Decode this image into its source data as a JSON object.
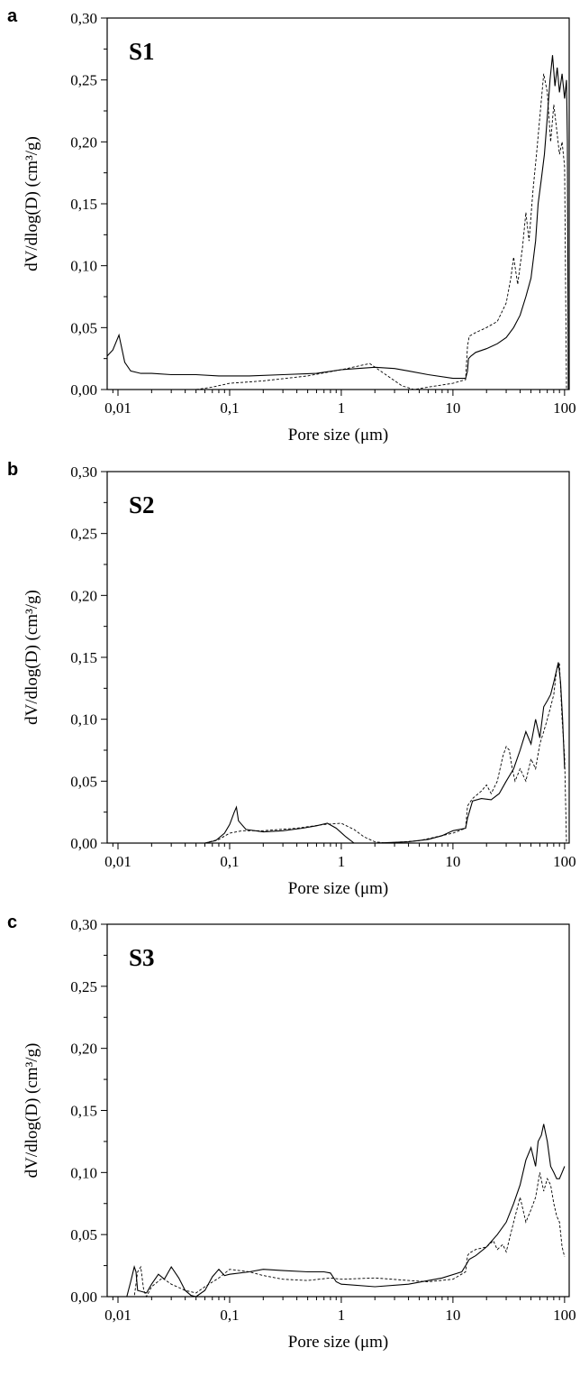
{
  "chart_data": [
    {
      "type": "line",
      "panel_letter": "a",
      "title": "S1",
      "xlabel": "Pore size (μm)",
      "ylabel": "dV/dlog(D) (cm³/g)",
      "x_scale": "log",
      "xlim": [
        0.008,
        110
      ],
      "ylim": [
        0,
        0.3
      ],
      "x_ticks": [
        {
          "value": 0.01,
          "label": "0,01"
        },
        {
          "value": 0.1,
          "label": "0,1"
        },
        {
          "value": 1,
          "label": "1"
        },
        {
          "value": 10,
          "label": "10"
        },
        {
          "value": 100,
          "label": "100"
        }
      ],
      "y_ticks": [
        {
          "value": 0.0,
          "label": "0,00"
        },
        {
          "value": 0.05,
          "label": "0,05"
        },
        {
          "value": 0.1,
          "label": "0,10"
        },
        {
          "value": 0.15,
          "label": "0,15"
        },
        {
          "value": 0.2,
          "label": "0,20"
        },
        {
          "value": 0.25,
          "label": "0,25"
        },
        {
          "value": 0.3,
          "label": "0,30"
        }
      ],
      "grid": false,
      "series": [
        {
          "style": "solid",
          "x": [
            0.008,
            0.009,
            0.0102,
            0.0115,
            0.013,
            0.016,
            0.02,
            0.03,
            0.05,
            0.08,
            0.15,
            0.3,
            0.6,
            1,
            2,
            3,
            4,
            6,
            10,
            13,
            13.5,
            13.8,
            14.5,
            16,
            20,
            25,
            30,
            35,
            40,
            45,
            50,
            55,
            58,
            62,
            66,
            70,
            74,
            78,
            82,
            86,
            90,
            95,
            100,
            104,
            106,
            107,
            108
          ],
          "y": [
            0.027,
            0.032,
            0.044,
            0.022,
            0.015,
            0.013,
            0.013,
            0.012,
            0.012,
            0.011,
            0.011,
            0.012,
            0.013,
            0.016,
            0.018,
            0.017,
            0.015,
            0.012,
            0.009,
            0.009,
            0.015,
            0.025,
            0.027,
            0.03,
            0.033,
            0.037,
            0.042,
            0.05,
            0.06,
            0.075,
            0.09,
            0.12,
            0.15,
            0.17,
            0.19,
            0.22,
            0.25,
            0.27,
            0.245,
            0.26,
            0.24,
            0.255,
            0.235,
            0.25,
            0.2,
            0.1,
            0.0
          ]
        },
        {
          "style": "dashed",
          "x": [
            0.05,
            0.07,
            0.1,
            0.2,
            0.5,
            1,
            1.8,
            2.5,
            3.5,
            4.5,
            6,
            10,
            13,
            13.5,
            14,
            16,
            20,
            25,
            30,
            33,
            35,
            38,
            42,
            45,
            48,
            52,
            56,
            60,
            65,
            70,
            75,
            80,
            85,
            90,
            95,
            100,
            104
          ],
          "y": [
            0.0,
            0.002,
            0.005,
            0.007,
            0.011,
            0.016,
            0.021,
            0.012,
            0.003,
            0.0,
            0.002,
            0.005,
            0.008,
            0.035,
            0.043,
            0.046,
            0.05,
            0.055,
            0.07,
            0.09,
            0.107,
            0.085,
            0.115,
            0.143,
            0.12,
            0.16,
            0.19,
            0.22,
            0.255,
            0.24,
            0.2,
            0.23,
            0.21,
            0.19,
            0.2,
            0.18,
            0.0
          ]
        }
      ]
    },
    {
      "type": "line",
      "panel_letter": "b",
      "title": "S2",
      "xlabel": "Pore size (μm)",
      "ylabel": "dV/dlog(D) (cm³/g)",
      "x_scale": "log",
      "xlim": [
        0.008,
        110
      ],
      "ylim": [
        0,
        0.3
      ],
      "x_ticks": [
        {
          "value": 0.01,
          "label": "0,01"
        },
        {
          "value": 0.1,
          "label": "0,1"
        },
        {
          "value": 1,
          "label": "1"
        },
        {
          "value": 10,
          "label": "10"
        },
        {
          "value": 100,
          "label": "100"
        }
      ],
      "y_ticks": [
        {
          "value": 0.0,
          "label": "0,00"
        },
        {
          "value": 0.05,
          "label": "0,05"
        },
        {
          "value": 0.1,
          "label": "0,10"
        },
        {
          "value": 0.15,
          "label": "0,15"
        },
        {
          "value": 0.2,
          "label": "0,20"
        },
        {
          "value": 0.25,
          "label": "0,25"
        },
        {
          "value": 0.3,
          "label": "0,30"
        }
      ],
      "grid": false,
      "series": [
        {
          "style": "solid",
          "x": [
            0.06,
            0.075,
            0.09,
            0.1,
            0.11,
            0.115,
            0.12,
            0.14,
            0.2,
            0.3,
            0.45,
            0.6,
            0.75,
            0.9,
            1.1,
            1.3,
            2,
            4,
            6,
            8,
            10,
            13,
            13.5,
            15,
            18,
            22,
            26,
            30,
            35,
            40,
            45,
            50,
            55,
            60,
            65,
            70,
            75,
            80,
            85,
            88,
            92,
            96,
            100
          ],
          "y": [
            0.0,
            0.002,
            0.008,
            0.015,
            0.025,
            0.029,
            0.018,
            0.011,
            0.009,
            0.01,
            0.012,
            0.014,
            0.016,
            0.012,
            0.005,
            0.0,
            0.0,
            0.001,
            0.003,
            0.006,
            0.01,
            0.012,
            0.02,
            0.034,
            0.036,
            0.035,
            0.04,
            0.05,
            0.06,
            0.075,
            0.09,
            0.08,
            0.1,
            0.085,
            0.11,
            0.115,
            0.12,
            0.13,
            0.14,
            0.146,
            0.13,
            0.1,
            0.06
          ]
        },
        {
          "style": "dashed",
          "x": [
            0.06,
            0.08,
            0.1,
            0.13,
            0.2,
            0.4,
            0.7,
            1,
            1.3,
            1.6,
            2,
            2.5,
            5,
            10,
            13,
            13.5,
            15,
            18,
            20,
            22,
            25,
            28,
            30,
            32,
            34,
            36,
            40,
            45,
            50,
            55,
            60,
            65,
            70,
            75,
            80,
            85,
            90,
            95,
            100,
            104
          ],
          "y": [
            0.0,
            0.003,
            0.008,
            0.01,
            0.01,
            0.012,
            0.015,
            0.016,
            0.011,
            0.005,
            0.001,
            0.0,
            0.002,
            0.008,
            0.012,
            0.03,
            0.036,
            0.042,
            0.047,
            0.04,
            0.05,
            0.07,
            0.078,
            0.075,
            0.06,
            0.05,
            0.06,
            0.05,
            0.068,
            0.06,
            0.08,
            0.09,
            0.1,
            0.11,
            0.12,
            0.14,
            0.145,
            0.1,
            0.07,
            0.0
          ]
        }
      ]
    },
    {
      "type": "line",
      "panel_letter": "c",
      "title": "S3",
      "xlabel": "Pore size (μm)",
      "ylabel": "dV/dlog(D) (cm³/g)",
      "x_scale": "log",
      "xlim": [
        0.008,
        110
      ],
      "ylim": [
        0,
        0.3
      ],
      "x_ticks": [
        {
          "value": 0.01,
          "label": "0,01"
        },
        {
          "value": 0.1,
          "label": "0,1"
        },
        {
          "value": 1,
          "label": "1"
        },
        {
          "value": 10,
          "label": "10"
        },
        {
          "value": 100,
          "label": "100"
        }
      ],
      "y_ticks": [
        {
          "value": 0.0,
          "label": "0,00"
        },
        {
          "value": 0.05,
          "label": "0,05"
        },
        {
          "value": 0.1,
          "label": "0,10"
        },
        {
          "value": 0.15,
          "label": "0,15"
        },
        {
          "value": 0.2,
          "label": "0,20"
        },
        {
          "value": 0.25,
          "label": "0,25"
        },
        {
          "value": 0.3,
          "label": "0,30"
        }
      ],
      "grid": false,
      "series": [
        {
          "style": "solid",
          "x": [
            0.012,
            0.013,
            0.014,
            0.0145,
            0.015,
            0.018,
            0.02,
            0.023,
            0.026,
            0.03,
            0.035,
            0.04,
            0.045,
            0.05,
            0.06,
            0.07,
            0.08,
            0.09,
            0.1,
            0.15,
            0.2,
            0.3,
            0.5,
            0.7,
            0.8,
            0.9,
            1,
            2,
            4,
            8,
            12,
            13,
            14,
            16,
            20,
            25,
            30,
            35,
            40,
            45,
            50,
            55,
            58,
            62,
            65,
            70,
            75,
            80,
            85,
            90,
            95,
            100
          ],
          "y": [
            0.0,
            0.012,
            0.024,
            0.02,
            0.005,
            0.003,
            0.01,
            0.018,
            0.014,
            0.024,
            0.015,
            0.005,
            0.001,
            0.0,
            0.005,
            0.016,
            0.022,
            0.017,
            0.018,
            0.02,
            0.022,
            0.021,
            0.02,
            0.02,
            0.019,
            0.012,
            0.01,
            0.008,
            0.01,
            0.015,
            0.02,
            0.025,
            0.03,
            0.033,
            0.04,
            0.05,
            0.06,
            0.075,
            0.09,
            0.11,
            0.12,
            0.105,
            0.125,
            0.13,
            0.139,
            0.125,
            0.105,
            0.1,
            0.095,
            0.095,
            0.1,
            0.105
          ]
        },
        {
          "style": "dashed",
          "x": [
            0.012,
            0.014,
            0.015,
            0.016,
            0.017,
            0.018,
            0.02,
            0.025,
            0.03,
            0.04,
            0.05,
            0.06,
            0.08,
            0.1,
            0.15,
            0.2,
            0.3,
            0.5,
            0.8,
            1,
            2,
            4,
            6,
            10,
            13,
            13.5,
            14,
            16,
            20,
            23,
            25,
            28,
            30,
            35,
            40,
            45,
            50,
            55,
            60,
            65,
            70,
            75,
            80,
            85,
            90,
            95,
            100
          ],
          "y": [
            0.0,
            0.0,
            0.02,
            0.024,
            0.005,
            0.0,
            0.008,
            0.015,
            0.01,
            0.005,
            0.003,
            0.008,
            0.015,
            0.022,
            0.02,
            0.017,
            0.014,
            0.013,
            0.015,
            0.014,
            0.015,
            0.013,
            0.012,
            0.014,
            0.02,
            0.033,
            0.035,
            0.038,
            0.04,
            0.045,
            0.038,
            0.042,
            0.036,
            0.06,
            0.08,
            0.06,
            0.07,
            0.08,
            0.1,
            0.085,
            0.095,
            0.09,
            0.075,
            0.065,
            0.06,
            0.04,
            0.032
          ]
        }
      ]
    }
  ]
}
